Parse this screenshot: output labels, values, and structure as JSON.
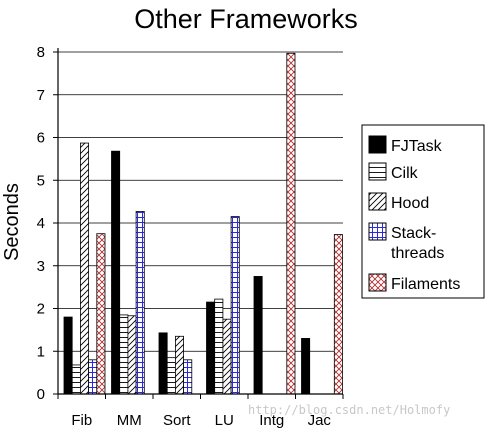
{
  "chart_data": {
    "type": "bar",
    "title": "Other Frameworks",
    "xlabel": "",
    "ylabel": "Seconds",
    "ylim": [
      0,
      8
    ],
    "yticks": [
      0,
      1,
      2,
      3,
      4,
      5,
      6,
      7,
      8
    ],
    "grid": true,
    "legend_position": "right",
    "categories": [
      "Fib",
      "MM",
      "Sort",
      "LU",
      "Intg",
      "Jac"
    ],
    "series": [
      {
        "name": "FJTask",
        "pattern": "solid",
        "color": "#000000",
        "values": [
          1.8,
          5.68,
          1.43,
          2.15,
          2.75,
          1.3
        ]
      },
      {
        "name": "Cilk",
        "pattern": "horizontal-lines",
        "color": "#000000",
        "values": [
          0.68,
          1.85,
          0.85,
          2.22,
          null,
          null
        ]
      },
      {
        "name": "Hood",
        "pattern": "diagonal-lines",
        "color": "#000000",
        "values": [
          5.87,
          1.83,
          1.35,
          1.75,
          null,
          null
        ]
      },
      {
        "name": "Stack-\nthreads",
        "pattern": "blue-crosshatch",
        "color": "#2b2bdc",
        "values": [
          0.8,
          4.27,
          0.8,
          4.15,
          null,
          null
        ]
      },
      {
        "name": "Filaments",
        "pattern": "red-diamond",
        "color": "#b03030",
        "values": [
          3.75,
          null,
          null,
          null,
          7.97,
          3.73
        ]
      }
    ]
  },
  "watermark": "http://blog.csdn.net/Holmofy"
}
